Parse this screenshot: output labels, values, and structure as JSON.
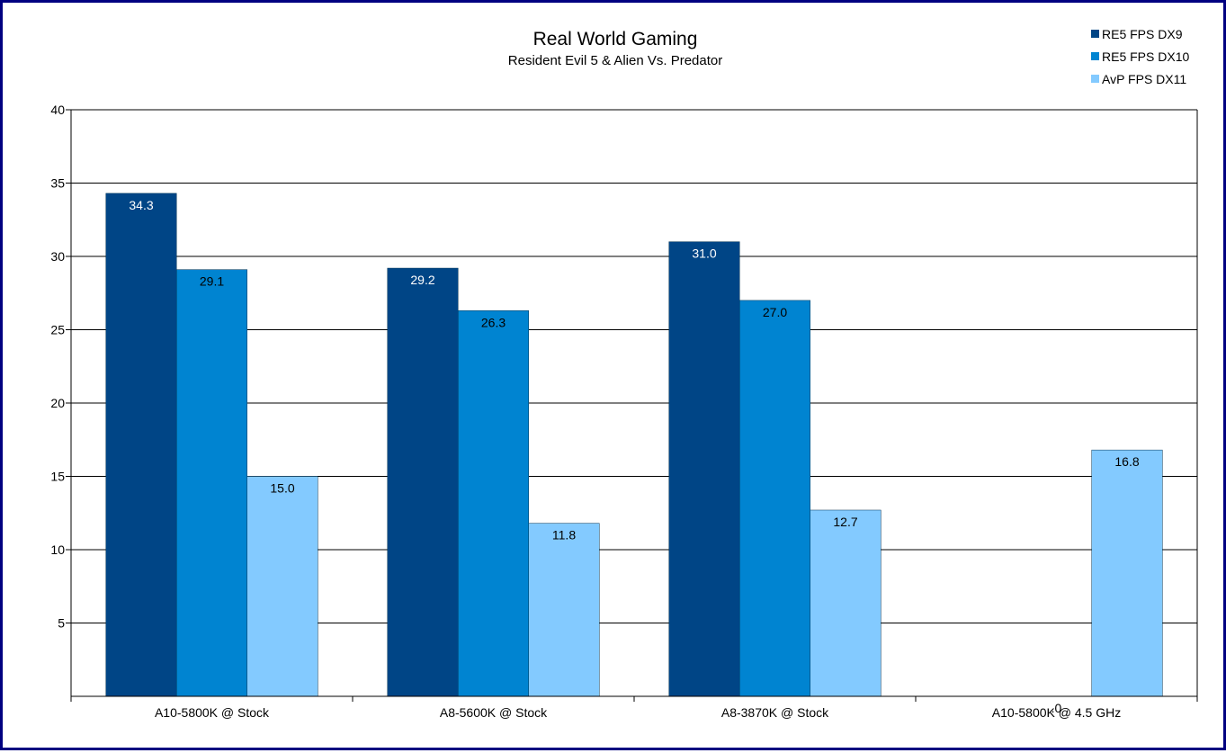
{
  "chart_data": {
    "type": "bar",
    "title": "Real World Gaming",
    "subtitle": "Resident Evil 5 & Alien Vs. Predator",
    "categories": [
      "A10-5800K @ Stock",
      "A8-5600K @ Stock",
      "A8-3870K @ Stock",
      "A10-5800K @ 4.5 GHz"
    ],
    "series": [
      {
        "name": "RE5 FPS DX9",
        "color": "#004586",
        "label_color": "#ffffff",
        "values": [
          34.3,
          29.2,
          31.0,
          0
        ]
      },
      {
        "name": "RE5 FPS DX10",
        "color": "#0084d1",
        "label_color": "#000000",
        "values": [
          29.1,
          26.3,
          27.0,
          0
        ]
      },
      {
        "name": "AvP FPS DX11",
        "color": "#83caff",
        "label_color": "#000000",
        "values": [
          15.0,
          11.8,
          12.7,
          16.8
        ]
      }
    ],
    "data_labels": [
      [
        "34.3",
        "29.2",
        "31.0",
        ""
      ],
      [
        "29.1",
        "26.3",
        "27.0",
        ".0"
      ],
      [
        "15.0",
        "11.8",
        "12.7",
        "16.8"
      ]
    ],
    "ylim": [
      0,
      40
    ],
    "yticks": [
      "5",
      "10",
      "15",
      "20",
      "25",
      "30",
      "35",
      "40"
    ],
    "ytick_values": [
      5,
      10,
      15,
      20,
      25,
      30,
      35,
      40
    ],
    "grid": true,
    "legend_position": "top-right",
    "xlabel": "",
    "ylabel": ""
  }
}
